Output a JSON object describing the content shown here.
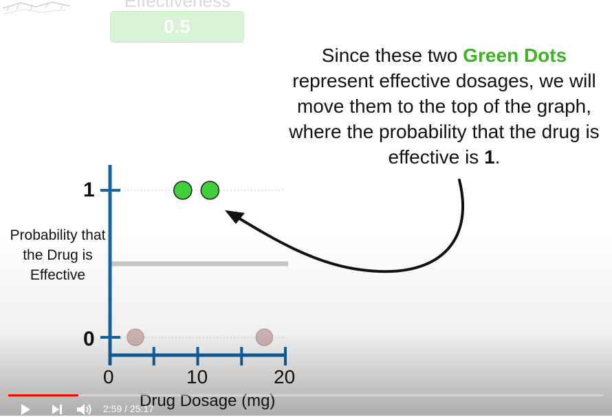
{
  "header": {
    "label": "Effectiveness",
    "value": "0.5"
  },
  "callout": {
    "text_before": "Since these two ",
    "highlight": "Green Dots",
    "text_middle": " represent effective dosages, we will move them to the top of the graph, where the probability that the drug is effective is ",
    "bold_value": "1",
    "text_end": "."
  },
  "chart_data": {
    "type": "scatter",
    "title": "",
    "xlabel": "Drug Dosage (mg)",
    "ylabel": "Probability that the Drug is Effective",
    "xlim": [
      0,
      20
    ],
    "ylim": [
      0,
      1
    ],
    "x_ticks": [
      "0",
      "10",
      "20"
    ],
    "x_tick_positions": [
      0,
      5,
      10,
      15,
      20
    ],
    "y_ticks": [
      "0",
      "1"
    ],
    "series": [
      {
        "color": "#3fcf3a",
        "points": [
          [
            8.3,
            1
          ],
          [
            11.4,
            1
          ]
        ]
      },
      {
        "color": "#d8bcbb",
        "points": [
          [
            2.9,
            0
          ],
          [
            17.6,
            0
          ]
        ]
      }
    ],
    "reference_line": {
      "y": 0.5,
      "x_range": [
        0,
        20
      ]
    },
    "axis_color": "#1565a6"
  },
  "player": {
    "time": "2:59 / 25:17",
    "progress": 0.1181
  }
}
